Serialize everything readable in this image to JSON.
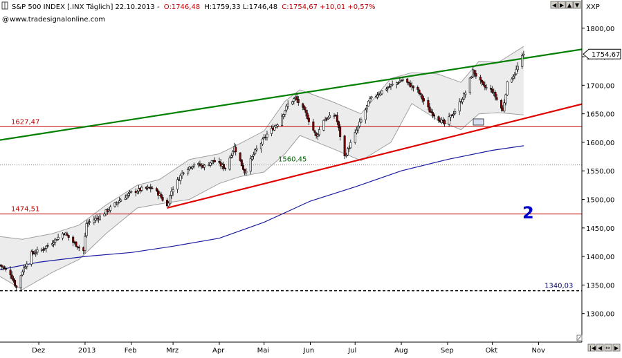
{
  "header": {
    "instrument": "S&P 500 INDEX [.INX Täglich] 22.10.2013 -",
    "open": "O:1746,48",
    "high": "H:1759,33",
    "low": "L:1746,48",
    "close_change": "C:1754,67 +10,01 +0,57%",
    "website": "www.tradesignalonline.com",
    "axis_unit": "XXP",
    "icons": [
      "info-icon",
      "globe-icon",
      "scroll-left-icon",
      "scroll-right-icon",
      "zoom-in-icon",
      "zoom-out-icon",
      "close-icon"
    ]
  },
  "colors": {
    "candle_up": "#ffffff",
    "candle_down": "#8b0000",
    "candle_outline": "#000000",
    "bollinger": "#a0a0a0",
    "bollinger_fill": "#ececec",
    "upper_trend": "#008000",
    "lower_trend": "#e00000",
    "moving_average": "#1a1aa0",
    "horizontal_level": "#c00000",
    "price_tag_bg": "#ffffff",
    "annotation": "#0000cc"
  },
  "chart_data": {
    "type": "candlestick",
    "period": "daily",
    "x": {
      "start": "2012-11-05",
      "end": "2013-11-30"
    },
    "ylim": [
      1250,
      1830
    ],
    "yticks": [
      "1300,00",
      "1350,00",
      "1400,00",
      "1450,00",
      "1500,00",
      "1550,00",
      "1600,00",
      "1650,00",
      "1700,00",
      "1750,00",
      "1800,00"
    ],
    "ytick_values": [
      1300,
      1350,
      1400,
      1450,
      1500,
      1550,
      1600,
      1650,
      1700,
      1750,
      1800
    ],
    "xticks": [
      {
        "label": "Dez",
        "date": "2012-12-01"
      },
      {
        "label": "2013",
        "date": "2013-01-01"
      },
      {
        "label": "Feb",
        "date": "2013-02-01"
      },
      {
        "label": "Mrz",
        "date": "2013-03-01"
      },
      {
        "label": "Apr",
        "date": "2013-04-01"
      },
      {
        "label": "Mai",
        "date": "2013-05-01"
      },
      {
        "label": "Jun",
        "date": "2013-06-01"
      },
      {
        "label": "Jul",
        "date": "2013-07-01"
      },
      {
        "label": "Aug",
        "date": "2013-08-01"
      },
      {
        "label": "Sep",
        "date": "2013-09-01"
      },
      {
        "label": "Okt",
        "date": "2013-10-01"
      },
      {
        "label": "Nov",
        "date": "2013-11-01"
      }
    ],
    "close_path": [
      [
        "2012-11-05",
        1385
      ],
      [
        "2012-11-12",
        1370
      ],
      [
        "2012-11-16",
        1345
      ],
      [
        "2012-11-20",
        1375
      ],
      [
        "2012-11-26",
        1405
      ],
      [
        "2012-12-03",
        1412
      ],
      [
        "2012-12-10",
        1425
      ],
      [
        "2012-12-18",
        1442
      ],
      [
        "2012-12-24",
        1425
      ],
      [
        "2012-12-31",
        1410
      ],
      [
        "2013-01-02",
        1458
      ],
      [
        "2013-01-11",
        1470
      ],
      [
        "2013-01-18",
        1485
      ],
      [
        "2013-01-25",
        1500
      ],
      [
        "2013-02-01",
        1512
      ],
      [
        "2013-02-08",
        1518
      ],
      [
        "2013-02-15",
        1520
      ],
      [
        "2013-02-20",
        1508
      ],
      [
        "2013-02-25",
        1488
      ],
      [
        "2013-02-28",
        1515
      ],
      [
        "2013-03-08",
        1550
      ],
      [
        "2013-03-15",
        1562
      ],
      [
        "2013-03-22",
        1558
      ],
      [
        "2013-03-28",
        1568
      ],
      [
        "2013-04-05",
        1555
      ],
      [
        "2013-04-11",
        1592
      ],
      [
        "2013-04-18",
        1548
      ],
      [
        "2013-04-25",
        1584
      ],
      [
        "2013-05-03",
        1614
      ],
      [
        "2013-05-10",
        1633
      ],
      [
        "2013-05-17",
        1666
      ],
      [
        "2013-05-22",
        1678
      ],
      [
        "2013-05-29",
        1650
      ],
      [
        "2013-06-05",
        1610
      ],
      [
        "2013-06-10",
        1640
      ],
      [
        "2013-06-18",
        1648
      ],
      [
        "2013-06-24",
        1575
      ],
      [
        "2013-07-01",
        1615
      ],
      [
        "2013-07-11",
        1675
      ],
      [
        "2013-07-22",
        1695
      ],
      [
        "2013-08-02",
        1710
      ],
      [
        "2013-08-12",
        1690
      ],
      [
        "2013-08-20",
        1655
      ],
      [
        "2013-08-30",
        1632
      ],
      [
        "2013-09-06",
        1655
      ],
      [
        "2013-09-13",
        1687
      ],
      [
        "2013-09-18",
        1725
      ],
      [
        "2013-09-25",
        1698
      ],
      [
        "2013-10-01",
        1690
      ],
      [
        "2013-10-08",
        1655
      ],
      [
        "2013-10-11",
        1703
      ],
      [
        "2013-10-16",
        1721
      ],
      [
        "2013-10-22",
        1754.67
      ]
    ],
    "bollinger": {
      "upper": [
        [
          "2012-11-05",
          1435
        ],
        [
          "2012-11-20",
          1430
        ],
        [
          "2012-12-10",
          1440
        ],
        [
          "2012-12-28",
          1455
        ],
        [
          "2013-01-15",
          1490
        ],
        [
          "2013-02-05",
          1525
        ],
        [
          "2013-02-20",
          1535
        ],
        [
          "2013-03-12",
          1570
        ],
        [
          "2013-04-01",
          1580
        ],
        [
          "2013-04-15",
          1598
        ],
        [
          "2013-05-01",
          1620
        ],
        [
          "2013-05-15",
          1672
        ],
        [
          "2013-05-25",
          1692
        ],
        [
          "2013-06-15",
          1672
        ],
        [
          "2013-07-05",
          1650
        ],
        [
          "2013-07-25",
          1712
        ],
        [
          "2013-08-08",
          1722
        ],
        [
          "2013-08-25",
          1720
        ],
        [
          "2013-09-10",
          1705
        ],
        [
          "2013-09-22",
          1742
        ],
        [
          "2013-10-05",
          1740
        ],
        [
          "2013-10-22",
          1768
        ]
      ],
      "lower": [
        [
          "2012-11-05",
          1365
        ],
        [
          "2012-11-20",
          1342
        ],
        [
          "2012-12-10",
          1372
        ],
        [
          "2012-12-28",
          1395
        ],
        [
          "2013-01-15",
          1440
        ],
        [
          "2013-02-05",
          1485
        ],
        [
          "2013-02-20",
          1492
        ],
        [
          "2013-03-12",
          1500
        ],
        [
          "2013-04-01",
          1528
        ],
        [
          "2013-04-15",
          1540
        ],
        [
          "2013-05-01",
          1548
        ],
        [
          "2013-05-15",
          1580
        ],
        [
          "2013-05-25",
          1612
        ],
        [
          "2013-06-15",
          1590
        ],
        [
          "2013-07-05",
          1568
        ],
        [
          "2013-07-25",
          1600
        ],
        [
          "2013-08-08",
          1668
        ],
        [
          "2013-08-25",
          1640
        ],
        [
          "2013-09-10",
          1622
        ],
        [
          "2013-09-22",
          1650
        ],
        [
          "2013-10-05",
          1652
        ],
        [
          "2013-10-22",
          1648
        ]
      ]
    },
    "moving_average": [
      [
        "2012-11-05",
        1377
      ],
      [
        "2012-12-01",
        1390
      ],
      [
        "2013-01-01",
        1400
      ],
      [
        "2013-02-01",
        1407
      ],
      [
        "2013-03-01",
        1418
      ],
      [
        "2013-04-01",
        1432
      ],
      [
        "2013-05-01",
        1460
      ],
      [
        "2013-06-01",
        1497
      ],
      [
        "2013-07-01",
        1522
      ],
      [
        "2013-08-01",
        1550
      ],
      [
        "2013-09-01",
        1570
      ],
      [
        "2013-10-01",
        1586
      ],
      [
        "2013-10-22",
        1594
      ]
    ],
    "trendlines": [
      {
        "name": "upper",
        "from": [
          "2012-11-05",
          1604
        ],
        "to": [
          "2013-11-30",
          1763
        ]
      },
      {
        "name": "lower",
        "from": [
          "2013-02-25",
          1485
        ],
        "to": [
          "2013-11-30",
          1667
        ]
      }
    ],
    "levels": [
      {
        "value": 1627.47,
        "label": "1627,47",
        "color": "#c00000",
        "style": "solid"
      },
      {
        "value": 1474.51,
        "label": "1474,51",
        "color": "#c00000",
        "style": "solid"
      },
      {
        "value": 1560.45,
        "label": "1560,45",
        "color": "#808080",
        "style": "dotted"
      },
      {
        "value": 1340.03,
        "label": "1340,03",
        "color": "#000000",
        "style": "dashed"
      }
    ],
    "last_price": {
      "value": 1754.67,
      "label": "1754,67"
    },
    "annotation": "2"
  }
}
